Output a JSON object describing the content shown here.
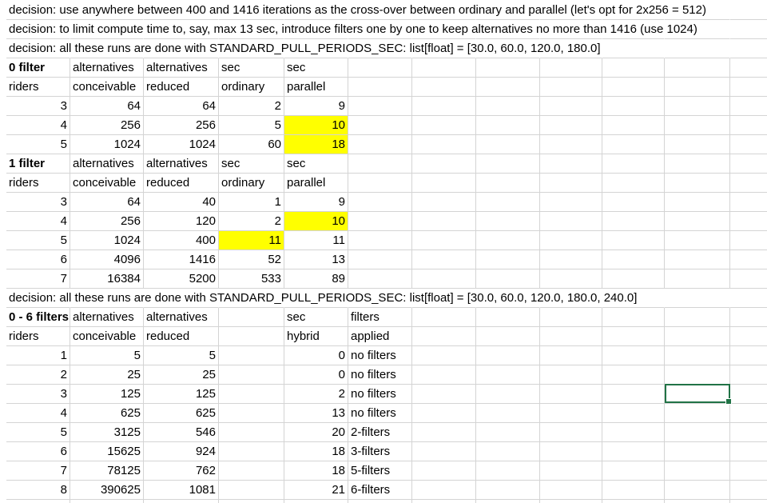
{
  "colors": {
    "highlight": "#ffff00",
    "gridline": "#d4d4d4",
    "selection": "#217346"
  },
  "rows": [
    [
      {
        "col": "A",
        "v": "decision: use anywhere between 400 and 1416 iterations as the cross-over between ordinary and parallel (let's opt for 2x256 = 512)",
        "span": true
      }
    ],
    [
      {
        "col": "A",
        "v": "decision: to limit compute time to, say, max 13 sec, introduce filters one by one to keep alternatives no more than 1416 (use 1024)",
        "span": true
      }
    ],
    [
      {
        "col": "A",
        "v": "decision: all these runs are done with STANDARD_PULL_PERIODS_SEC: list[float] = [30.0, 60.0, 120.0, 180.0]",
        "span": true
      }
    ],
    [
      {
        "col": "A",
        "v": "0 filter",
        "bold": true
      },
      {
        "col": "B",
        "v": "alternatives"
      },
      {
        "col": "C",
        "v": "alternatives"
      },
      {
        "col": "D",
        "v": "sec"
      },
      {
        "col": "E",
        "v": "sec"
      }
    ],
    [
      {
        "col": "A",
        "v": "riders"
      },
      {
        "col": "B",
        "v": "conceivable"
      },
      {
        "col": "C",
        "v": "reduced"
      },
      {
        "col": "D",
        "v": "ordinary"
      },
      {
        "col": "E",
        "v": "parallel"
      }
    ],
    [
      {
        "col": "A",
        "v": "3",
        "num": true
      },
      {
        "col": "B",
        "v": "64",
        "num": true
      },
      {
        "col": "C",
        "v": "64",
        "num": true
      },
      {
        "col": "D",
        "v": "2",
        "num": true
      },
      {
        "col": "E",
        "v": "9",
        "num": true
      }
    ],
    [
      {
        "col": "A",
        "v": "4",
        "num": true
      },
      {
        "col": "B",
        "v": "256",
        "num": true
      },
      {
        "col": "C",
        "v": "256",
        "num": true
      },
      {
        "col": "D",
        "v": "5",
        "num": true
      },
      {
        "col": "E",
        "v": "10",
        "num": true,
        "hl": true
      }
    ],
    [
      {
        "col": "A",
        "v": "5",
        "num": true
      },
      {
        "col": "B",
        "v": "1024",
        "num": true
      },
      {
        "col": "C",
        "v": "1024",
        "num": true
      },
      {
        "col": "D",
        "v": "60",
        "num": true
      },
      {
        "col": "E",
        "v": "18",
        "num": true,
        "hl": true
      }
    ],
    [
      {
        "col": "A",
        "v": "1 filter",
        "bold": true
      },
      {
        "col": "B",
        "v": "alternatives"
      },
      {
        "col": "C",
        "v": "alternatives"
      },
      {
        "col": "D",
        "v": "sec"
      },
      {
        "col": "E",
        "v": "sec"
      }
    ],
    [
      {
        "col": "A",
        "v": "riders"
      },
      {
        "col": "B",
        "v": "conceivable"
      },
      {
        "col": "C",
        "v": "reduced"
      },
      {
        "col": "D",
        "v": "ordinary"
      },
      {
        "col": "E",
        "v": "parallel"
      }
    ],
    [
      {
        "col": "A",
        "v": "3",
        "num": true
      },
      {
        "col": "B",
        "v": "64",
        "num": true
      },
      {
        "col": "C",
        "v": "40",
        "num": true
      },
      {
        "col": "D",
        "v": "1",
        "num": true
      },
      {
        "col": "E",
        "v": "9",
        "num": true
      }
    ],
    [
      {
        "col": "A",
        "v": "4",
        "num": true
      },
      {
        "col": "B",
        "v": "256",
        "num": true
      },
      {
        "col": "C",
        "v": "120",
        "num": true
      },
      {
        "col": "D",
        "v": "2",
        "num": true
      },
      {
        "col": "E",
        "v": "10",
        "num": true,
        "hl": true
      }
    ],
    [
      {
        "col": "A",
        "v": "5",
        "num": true
      },
      {
        "col": "B",
        "v": "1024",
        "num": true
      },
      {
        "col": "C",
        "v": "400",
        "num": true
      },
      {
        "col": "D",
        "v": "11",
        "num": true,
        "hl": true
      },
      {
        "col": "E",
        "v": "11",
        "num": true
      }
    ],
    [
      {
        "col": "A",
        "v": "6",
        "num": true
      },
      {
        "col": "B",
        "v": "4096",
        "num": true
      },
      {
        "col": "C",
        "v": "1416",
        "num": true
      },
      {
        "col": "D",
        "v": "52",
        "num": true
      },
      {
        "col": "E",
        "v": "13",
        "num": true
      }
    ],
    [
      {
        "col": "A",
        "v": "7",
        "num": true
      },
      {
        "col": "B",
        "v": "16384",
        "num": true
      },
      {
        "col": "C",
        "v": "5200",
        "num": true
      },
      {
        "col": "D",
        "v": "533",
        "num": true
      },
      {
        "col": "E",
        "v": "89",
        "num": true
      }
    ],
    [
      {
        "col": "A",
        "v": "decision: all these runs are done with STANDARD_PULL_PERIODS_SEC: list[float] = [30.0, 60.0, 120.0, 180.0, 240.0]",
        "span": true
      }
    ],
    [
      {
        "col": "A",
        "v": "0 - 6 filters",
        "bold": true
      },
      {
        "col": "B",
        "v": "alternatives"
      },
      {
        "col": "C",
        "v": "alternatives"
      },
      {
        "col": "E",
        "v": "sec"
      },
      {
        "col": "F",
        "v": "filters"
      }
    ],
    [
      {
        "col": "A",
        "v": "riders"
      },
      {
        "col": "B",
        "v": "conceivable"
      },
      {
        "col": "C",
        "v": "reduced"
      },
      {
        "col": "E",
        "v": "hybrid"
      },
      {
        "col": "F",
        "v": "applied"
      }
    ],
    [
      {
        "col": "A",
        "v": "1",
        "num": true
      },
      {
        "col": "B",
        "v": "5",
        "num": true
      },
      {
        "col": "C",
        "v": "5",
        "num": true
      },
      {
        "col": "E",
        "v": "0",
        "num": true
      },
      {
        "col": "F",
        "v": "no filters"
      }
    ],
    [
      {
        "col": "A",
        "v": "2",
        "num": true
      },
      {
        "col": "B",
        "v": "25",
        "num": true
      },
      {
        "col": "C",
        "v": "25",
        "num": true
      },
      {
        "col": "E",
        "v": "0",
        "num": true
      },
      {
        "col": "F",
        "v": "no filters"
      }
    ],
    [
      {
        "col": "A",
        "v": "3",
        "num": true
      },
      {
        "col": "B",
        "v": "125",
        "num": true
      },
      {
        "col": "C",
        "v": "125",
        "num": true
      },
      {
        "col": "E",
        "v": "2",
        "num": true
      },
      {
        "col": "F",
        "v": "no filters"
      }
    ],
    [
      {
        "col": "A",
        "v": "4",
        "num": true
      },
      {
        "col": "B",
        "v": "625",
        "num": true
      },
      {
        "col": "C",
        "v": "625",
        "num": true
      },
      {
        "col": "E",
        "v": "13",
        "num": true
      },
      {
        "col": "F",
        "v": "no filters"
      }
    ],
    [
      {
        "col": "A",
        "v": "5",
        "num": true
      },
      {
        "col": "B",
        "v": "3125",
        "num": true
      },
      {
        "col": "C",
        "v": "546",
        "num": true
      },
      {
        "col": "E",
        "v": "20",
        "num": true
      },
      {
        "col": "F",
        "v": "2-filters"
      }
    ],
    [
      {
        "col": "A",
        "v": "6",
        "num": true
      },
      {
        "col": "B",
        "v": "15625",
        "num": true
      },
      {
        "col": "C",
        "v": "924",
        "num": true
      },
      {
        "col": "E",
        "v": "18",
        "num": true
      },
      {
        "col": "F",
        "v": "3-filters"
      }
    ],
    [
      {
        "col": "A",
        "v": "7",
        "num": true
      },
      {
        "col": "B",
        "v": "78125",
        "num": true
      },
      {
        "col": "C",
        "v": "762",
        "num": true
      },
      {
        "col": "E",
        "v": "18",
        "num": true
      },
      {
        "col": "F",
        "v": "5-filters"
      }
    ],
    [
      {
        "col": "A",
        "v": "8",
        "num": true
      },
      {
        "col": "B",
        "v": "390625",
        "num": true
      },
      {
        "col": "C",
        "v": "1081",
        "num": true
      },
      {
        "col": "E",
        "v": "21",
        "num": true
      },
      {
        "col": "F",
        "v": "6-filters"
      }
    ]
  ]
}
